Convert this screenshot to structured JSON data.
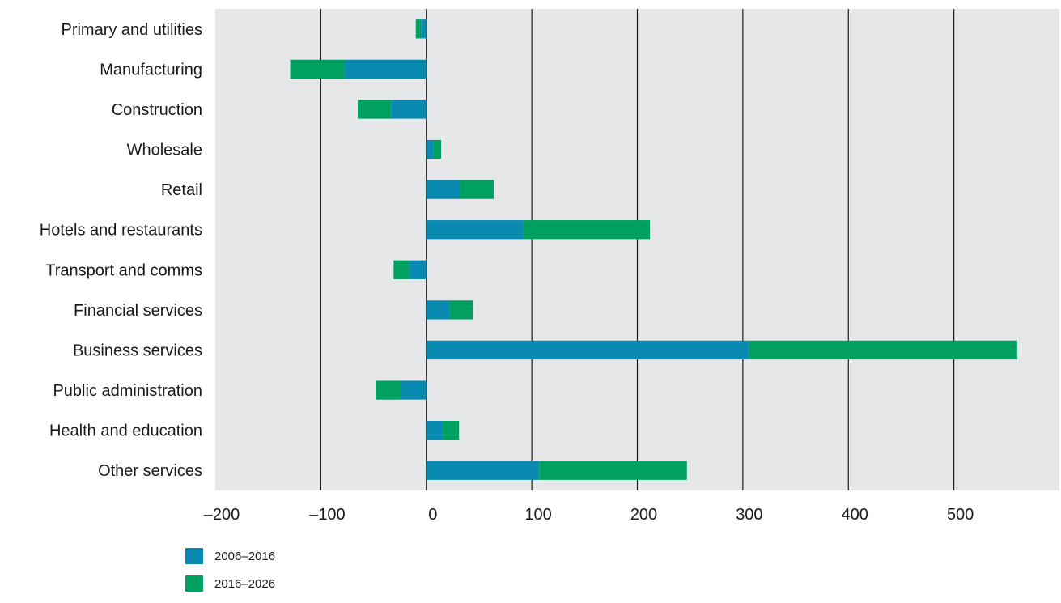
{
  "chart_data": {
    "type": "bar",
    "orientation": "horizontal",
    "stacked": true,
    "categories": [
      "Primary and utilities",
      "Manufacturing",
      "Construction",
      "Wholesale",
      "Retail",
      "Hotels and restaurants",
      "Transport and comms",
      "Financial services",
      "Business services",
      "Public administration",
      "Health and education",
      "Other services"
    ],
    "series": [
      {
        "name": "2006–2016",
        "color": "#0a8ab0",
        "values": [
          -5,
          -78,
          -33,
          7,
          32,
          92,
          -16,
          22,
          306,
          -24,
          16,
          107
        ]
      },
      {
        "name": "2016–2026",
        "color": "#00a060",
        "values": [
          -5,
          -51,
          -32,
          7,
          32,
          120,
          -15,
          22,
          254,
          -24,
          15,
          140
        ]
      }
    ],
    "xticks": [
      -200,
      -100,
      0,
      100,
      200,
      300,
      400,
      500
    ],
    "xtick_labels": [
      "–200",
      "–100",
      "0",
      "100",
      "200",
      "300",
      "400",
      "500"
    ],
    "xlim": [
      -200,
      600
    ],
    "title": "",
    "xlabel": "",
    "ylabel": "",
    "grid": "vertical",
    "legend_position": "bottom-left",
    "plot_background": "#e6e7e8"
  }
}
